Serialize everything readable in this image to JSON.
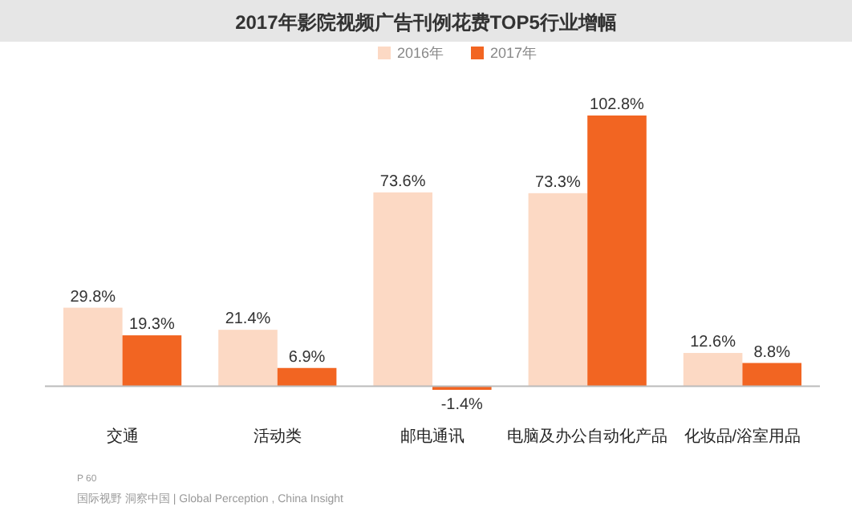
{
  "chart_data": {
    "type": "bar",
    "title": "2017年影院视频广告刊例花费TOP5行业增幅",
    "categories": [
      "交通",
      "活动类",
      "邮电通讯",
      "电脑及办公自动化产品",
      "化妆品/浴室用品"
    ],
    "series": [
      {
        "name": "2016年",
        "color": "#fcd9c4",
        "values": [
          29.8,
          21.4,
          73.6,
          73.3,
          12.6
        ],
        "value_labels": [
          "29.8%",
          "21.4%",
          "73.6%",
          "73.3%",
          "12.6%"
        ]
      },
      {
        "name": "2017年",
        "color": "#f26522",
        "values": [
          19.3,
          6.9,
          -1.4,
          102.8,
          8.8
        ],
        "value_labels": [
          "19.3%",
          "6.9%",
          "-1.4%",
          "102.8%",
          "8.8%"
        ]
      }
    ],
    "legend": "top",
    "grid": false,
    "annotations": [
      "P 60",
      "国际视野  洞察中国 | Global Perception , China Insight"
    ]
  }
}
